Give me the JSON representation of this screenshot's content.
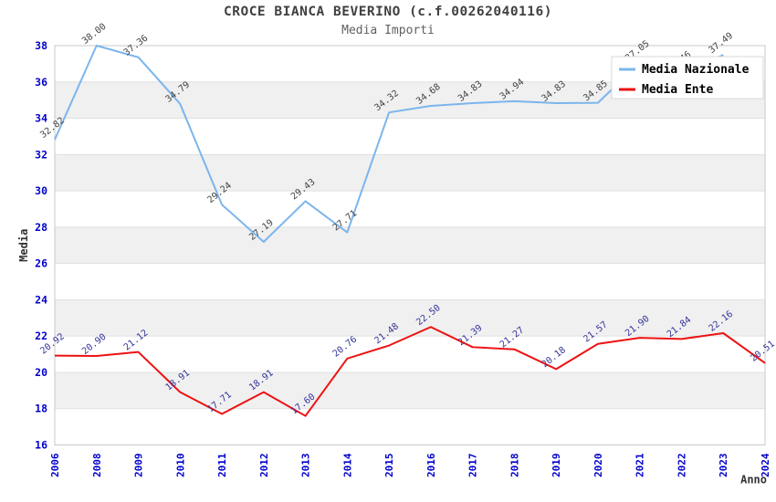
{
  "header": {
    "title": "CROCE BIANCA BEVERINO (c.f.00262040116)",
    "subtitle": "Media Importi"
  },
  "chart_data": {
    "type": "line",
    "title": "CROCE BIANCA BEVERINO (c.f.00262040116)",
    "subtitle": "Media Importi",
    "xlabel": "Anno",
    "ylabel": "Media",
    "ylim": [
      16,
      38
    ],
    "y_tick_step": 2,
    "x_tick_rotation": -90,
    "data_label_rotation": -38,
    "data_label_decimals": 2,
    "grid": "alternating-horizontal-bands",
    "legend_position": "top-right-overlay",
    "categories": [
      "2006",
      "2008",
      "2009",
      "2010",
      "2011",
      "2012",
      "2013",
      "2014",
      "2015",
      "2016",
      "2017",
      "2018",
      "2019",
      "2020",
      "2021",
      "2022",
      "2023",
      "2024"
    ],
    "series": [
      {
        "name": "Media Nazionale",
        "color": "#7cb5ec",
        "label_color": "#404040",
        "values": [
          32.82,
          38.0,
          37.36,
          34.79,
          29.24,
          27.19,
          29.43,
          27.71,
          34.32,
          34.68,
          34.83,
          34.94,
          34.83,
          34.85,
          37.05,
          36.46,
          37.49,
          null
        ]
      },
      {
        "name": "Media Ente",
        "color": "#ee1111",
        "label_color": "#333399",
        "values": [
          20.92,
          20.9,
          21.12,
          18.91,
          17.71,
          18.91,
          17.6,
          20.76,
          21.48,
          22.5,
          21.39,
          21.27,
          20.18,
          21.57,
          21.9,
          21.84,
          22.16,
          20.51
        ]
      }
    ]
  },
  "colors": {
    "background": "#ffffff",
    "band_fill": "#f0f0f0",
    "gridline": "#e0e0e0",
    "plot_border": "#c9c9c9",
    "tick_label": "#0000cc",
    "axis_title": "#333333",
    "title": "#404040",
    "subtitle": "#606060",
    "legend_bg": "#ffffff",
    "legend_border": "#d8d8d8",
    "legend_text": "#000000"
  }
}
